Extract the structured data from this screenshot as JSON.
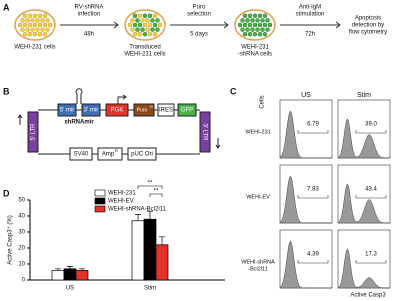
{
  "panels": {
    "a": "A",
    "b": "B",
    "c": "C",
    "d": "D"
  },
  "workflow": {
    "cells": [
      [
        "WEHI-231 cells"
      ],
      [
        "Transduced",
        "WEHI-231 cells"
      ],
      [
        "WEHI-231",
        "-shRNA cells"
      ]
    ],
    "steps": [
      [
        "RV-shRNA",
        "infection",
        "48h"
      ],
      [
        "Puro",
        "selection",
        "5 days"
      ],
      [
        "Anti-IgM",
        "stimulation",
        "72h"
      ]
    ],
    "result": [
      "Apoptosis",
      "detection by",
      "flow cytometry"
    ]
  },
  "plasmid": {
    "ltr5": "5' LTR",
    "mir5": "5' mir",
    "mir3": "3' mir",
    "pgk": "PGK",
    "puro": "Puro",
    "puro_sup": "R",
    "ires": "IRES",
    "gfp": "GFP",
    "ltr3": "3' LTR",
    "shrna": "shRNAmir",
    "sv40": "SV40",
    "amp": "Amp",
    "amp_sup": "R",
    "ori": "pUC Ori"
  },
  "flow": {
    "columns": [
      "US",
      "Stim"
    ],
    "y_label": "Cells",
    "x_label": "Active Casp3",
    "rows": [
      {
        "label": [
          "WEHI-231"
        ],
        "values": [
          "6.79",
          "39.0"
        ]
      },
      {
        "label": [
          "WEHI-EV"
        ],
        "values": [
          "7.83",
          "43.4"
        ]
      },
      {
        "label": [
          "WEHI-shRNA",
          "-Bcl2l11"
        ],
        "values": [
          "4.39",
          "17.3"
        ]
      }
    ]
  },
  "chart_data": {
    "type": "bar",
    "ylabel": "Active Casp3⁺ (%)",
    "categories": [
      "US",
      "Stim"
    ],
    "series": [
      {
        "name": "WEHI-231",
        "color": "#ffffff",
        "values": [
          6,
          37
        ],
        "errors": [
          1,
          4
        ]
      },
      {
        "name": "WEHI-EV",
        "color": "#000000",
        "values": [
          7,
          38
        ],
        "errors": [
          1.5,
          5
        ]
      },
      {
        "name": "WEHI-shRNA-Bcl2l11",
        "color": "#e8302a",
        "values": [
          6,
          22
        ],
        "errors": [
          1,
          5
        ]
      }
    ],
    "ylim": [
      0,
      50
    ],
    "yticks": [
      0,
      10,
      20,
      30,
      40,
      50
    ],
    "significance": [
      "**",
      "**"
    ]
  }
}
